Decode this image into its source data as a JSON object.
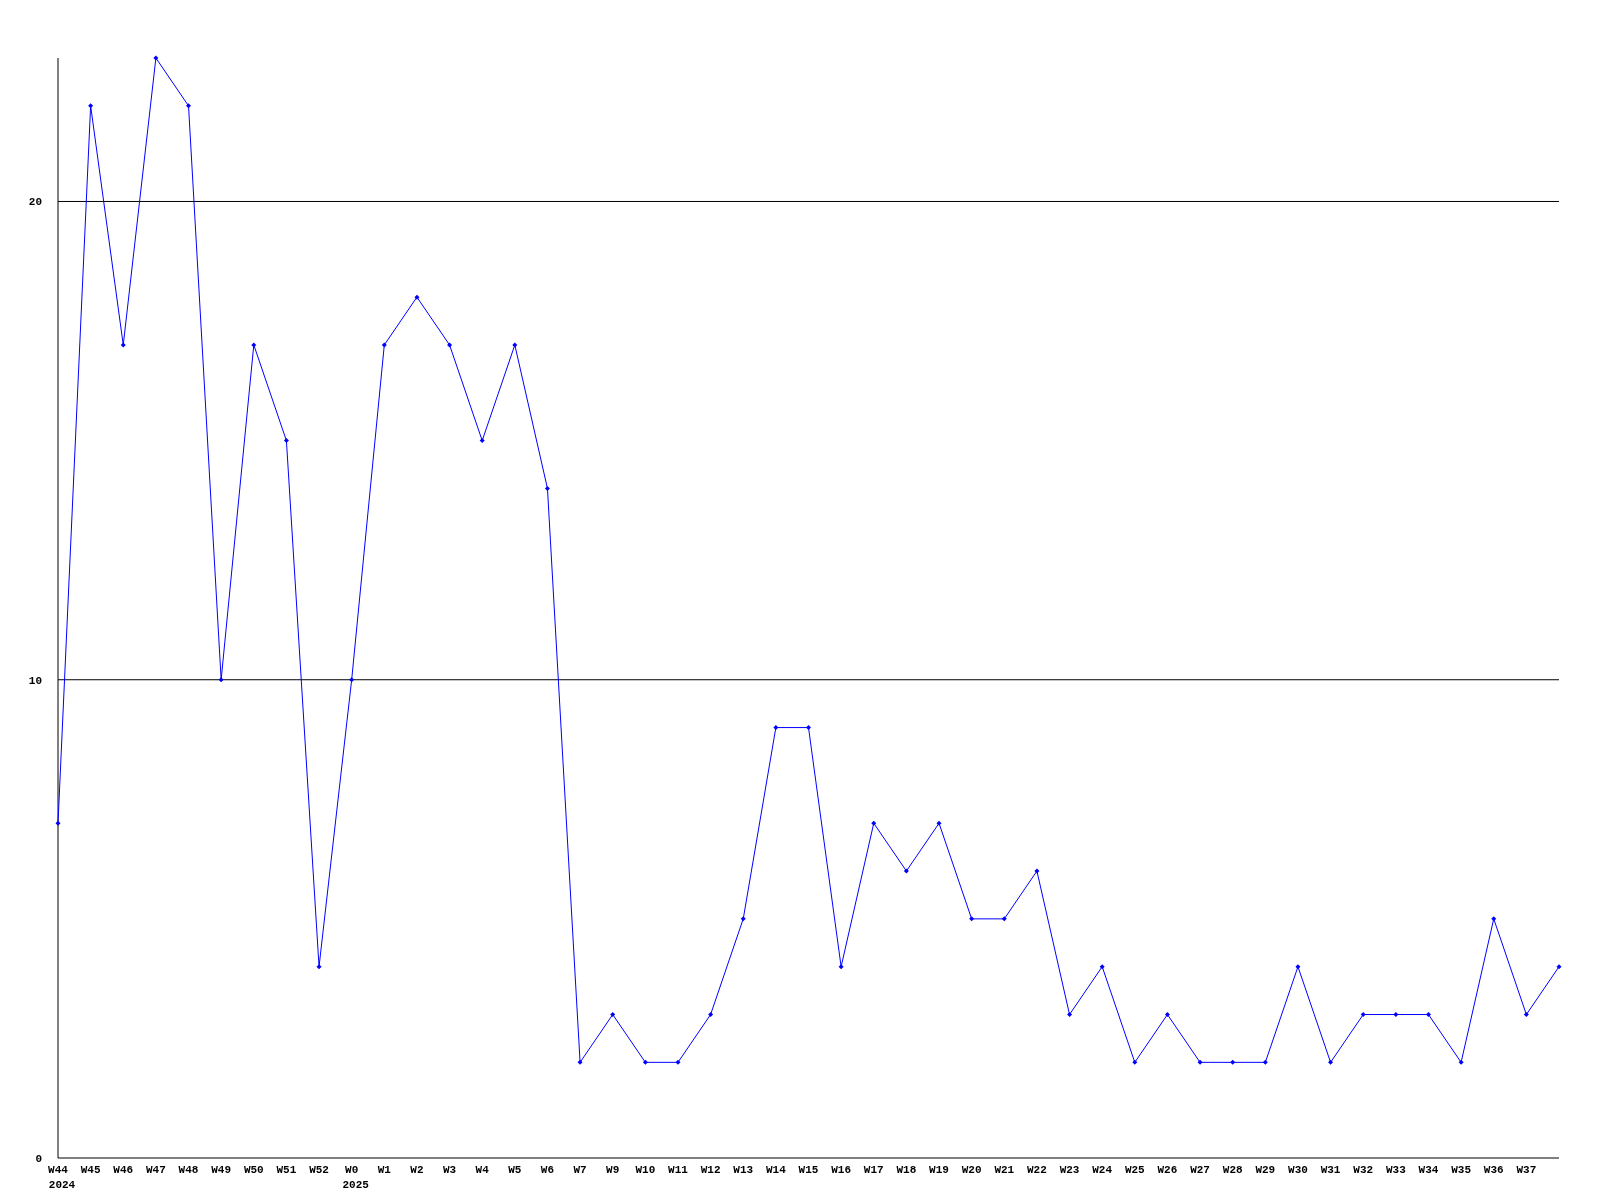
{
  "chart_data": {
    "type": "line",
    "categories": [
      "W44\n2024",
      "W45",
      "W46",
      "W47",
      "W48",
      "W49",
      "W50",
      "W51",
      "W52",
      "W0\n2025",
      "W1",
      "W2",
      "W3",
      "W4",
      "W5",
      "W6",
      "W7",
      "W9",
      "W10",
      "W11",
      "W12",
      "W13",
      "W14",
      "W15",
      "W16",
      "W17",
      "W18",
      "W19",
      "W20",
      "W21",
      "W22",
      "W23",
      "W24",
      "W25",
      "W26",
      "W27",
      "W28",
      "W29",
      "W30",
      "W31",
      "W32",
      "W33",
      "W34",
      "W35",
      "W36",
      "W37",
      null
    ],
    "series": [
      {
        "color": "#0000ff",
        "values": [
          7,
          22,
          17,
          23,
          22,
          10,
          17,
          15,
          4,
          10,
          17,
          18,
          17,
          15,
          17,
          14,
          2,
          3,
          2,
          2,
          3,
          5,
          9,
          9,
          4,
          7,
          6,
          7,
          5,
          5,
          6,
          3,
          4,
          2,
          3,
          2,
          2,
          2,
          4,
          2,
          3,
          3,
          3,
          2,
          5,
          3,
          4
        ]
      }
    ],
    "ylim": [
      0,
      23
    ],
    "yticks": [
      0,
      10,
      20
    ],
    "grid": "y",
    "marker": "diamond",
    "line_style": "solid"
  }
}
